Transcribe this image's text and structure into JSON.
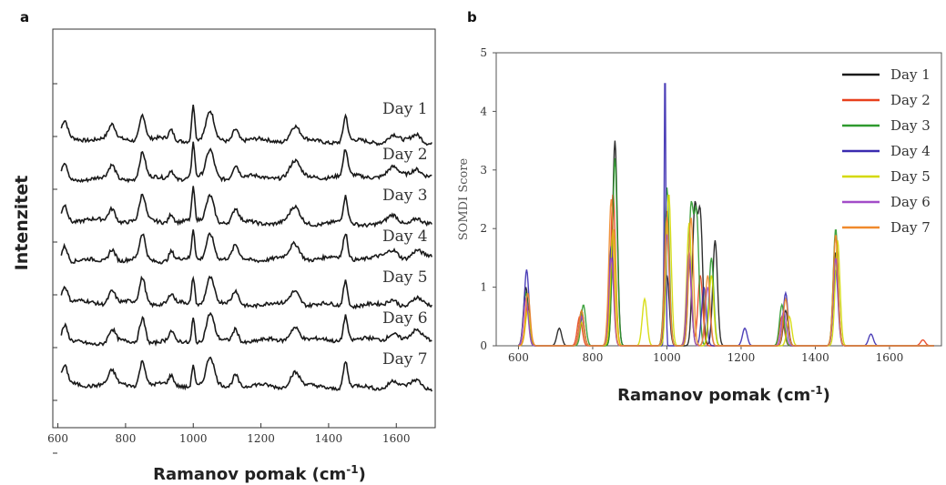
{
  "chart_data": [
    {
      "panel": "a",
      "type": "line",
      "xlabel": "Ramanov pomak (cm",
      "xlabel_sup": "-1",
      "xlabel_close": ")",
      "ylabel": "Intenzitet",
      "xlim": [
        585,
        1715
      ],
      "xticks": [
        600,
        800,
        1000,
        1200,
        1400,
        1600
      ],
      "series_names": [
        "Day 1",
        "Day 2",
        "Day 3",
        "Day 4",
        "Day 5",
        "Day 6",
        "Day 7"
      ],
      "peaks_cm1": [
        620,
        760,
        850,
        935,
        1000,
        1050,
        1125,
        1300,
        1450,
        1590,
        1660
      ],
      "color": "#1a1a1a"
    },
    {
      "panel": "b",
      "type": "line",
      "xlabel": "Ramanov pomak (cm",
      "xlabel_sup": "-1",
      "xlabel_close": ")",
      "ylabel": "SOMDI Score",
      "xlim": [
        540,
        1740
      ],
      "ylim": [
        0,
        5
      ],
      "xticks": [
        600,
        800,
        1000,
        1200,
        1400,
        1600
      ],
      "yticks": [
        0,
        1,
        2,
        3,
        4,
        5
      ],
      "legend_position": "top-right",
      "series": [
        {
          "name": "Day 1",
          "color": "#1a1a1a",
          "peaks": [
            [
              620,
              1.0
            ],
            [
              710,
              0.3
            ],
            [
              770,
              0.6
            ],
            [
              860,
              3.5
            ],
            [
              1000,
              1.2
            ],
            [
              1075,
              2.3
            ],
            [
              1090,
              2.2
            ],
            [
              1130,
              1.8
            ],
            [
              1320,
              0.6
            ],
            [
              1455,
              1.6
            ]
          ]
        },
        {
          "name": "Day 2",
          "color": "#e8401c",
          "peaks": [
            [
              625,
              0.7
            ],
            [
              765,
              0.5
            ],
            [
              855,
              2.6
            ],
            [
              1000,
              2.3
            ],
            [
              1060,
              1.4
            ],
            [
              1090,
              1.2
            ],
            [
              1310,
              0.5
            ],
            [
              1455,
              1.9
            ],
            [
              1690,
              0.1
            ]
          ]
        },
        {
          "name": "Day 3",
          "color": "#2e9a2e",
          "peaks": [
            [
              620,
              0.9
            ],
            [
              775,
              0.7
            ],
            [
              860,
              3.2
            ],
            [
              1000,
              2.7
            ],
            [
              1065,
              2.3
            ],
            [
              1080,
              2.2
            ],
            [
              1120,
              1.5
            ],
            [
              1310,
              0.7
            ],
            [
              1455,
              2.0
            ]
          ]
        },
        {
          "name": "Day 4",
          "color": "#3a2bb0",
          "peaks": [
            [
              622,
              1.3
            ],
            [
              770,
              0.5
            ],
            [
              850,
              1.7
            ],
            [
              995,
              5.0
            ],
            [
              1060,
              1.5
            ],
            [
              1100,
              1.0
            ],
            [
              1210,
              0.3
            ],
            [
              1320,
              0.9
            ],
            [
              1455,
              1.3
            ],
            [
              1550,
              0.2
            ]
          ]
        },
        {
          "name": "Day 5",
          "color": "#d4d900",
          "peaks": [
            [
              625,
              0.6
            ],
            [
              770,
              0.4
            ],
            [
              855,
              2.0
            ],
            [
              940,
              0.8
            ],
            [
              1005,
              2.6
            ],
            [
              1060,
              2.1
            ],
            [
              1120,
              1.2
            ],
            [
              1330,
              0.5
            ],
            [
              1460,
              1.8
            ]
          ]
        },
        {
          "name": "Day 6",
          "color": "#a24cc8",
          "peaks": [
            [
              620,
              0.8
            ],
            [
              770,
              0.5
            ],
            [
              850,
              1.5
            ],
            [
              1000,
              1.9
            ],
            [
              1060,
              1.6
            ],
            [
              1110,
              1.0
            ],
            [
              1315,
              0.6
            ],
            [
              1455,
              1.5
            ]
          ]
        },
        {
          "name": "Day 7",
          "color": "#f08a2c",
          "peaks": [
            [
              625,
              0.9
            ],
            [
              770,
              0.6
            ],
            [
              850,
              2.5
            ],
            [
              1000,
              2.2
            ],
            [
              1065,
              2.2
            ],
            [
              1110,
              1.2
            ],
            [
              1320,
              0.8
            ],
            [
              1455,
              1.9
            ]
          ]
        }
      ]
    }
  ]
}
